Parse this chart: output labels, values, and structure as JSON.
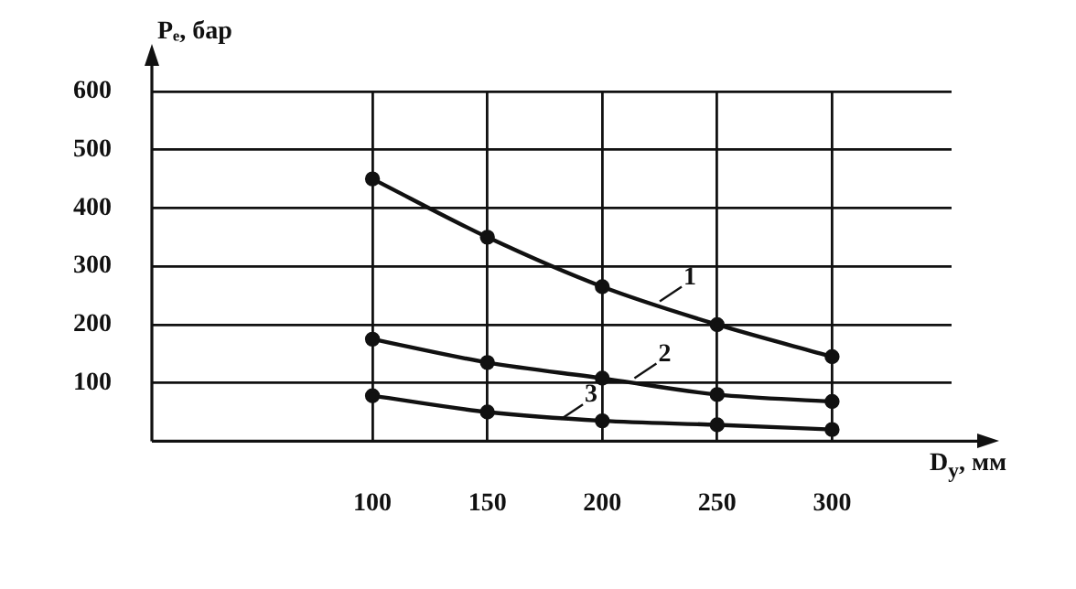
{
  "chart_data": {
    "type": "line",
    "xlabel": "D$_{у}$, мм",
    "ylabel": "Pₑ, бар",
    "x": [
      100,
      150,
      200,
      250,
      300
    ],
    "series": [
      {
        "color": "#111111",
        "values": [
          450,
          350,
          265,
          200,
          145
        ]
      },
      {
        "color": "#111111",
        "values": [
          175,
          135,
          108,
          80,
          68
        ]
      },
      {
        "color": "#111111",
        "values": [
          78,
          50,
          35,
          28,
          20
        ]
      }
    ],
    "xlim": [
      4,
      352
    ],
    "xticks": [
      100,
      150,
      200,
      250,
      300
    ],
    "ylim": [
      0,
      600
    ],
    "yticks": [
      100,
      200,
      300,
      400,
      500,
      600
    ],
    "grid": true,
    "marker": "circle",
    "line_style": "solid",
    "legend": false,
    "annotations": [
      {
        "text": "1",
        "x": 225,
        "y": 240
      },
      {
        "text": "2",
        "x": 214,
        "y": 108
      },
      {
        "text": "3",
        "x": 182,
        "y": 38
      }
    ]
  }
}
